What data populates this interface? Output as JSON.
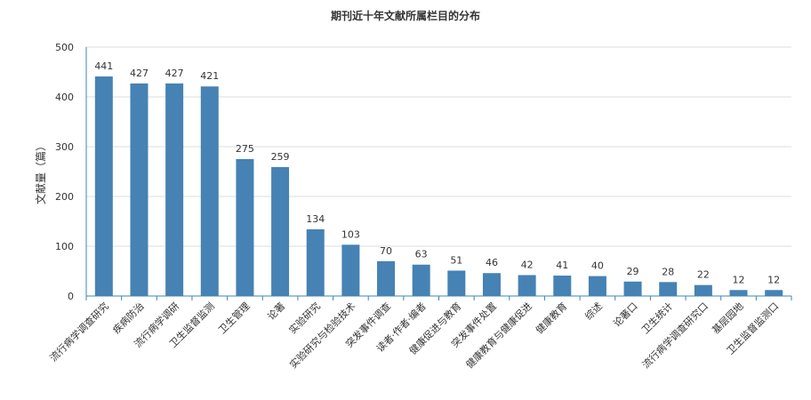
{
  "chart_data": {
    "type": "bar",
    "title": "期刊近十年文献所属栏目的分布",
    "xlabel": "",
    "ylabel": "文献量（篇）",
    "ylim": [
      0,
      500
    ],
    "yticks": [
      0,
      100,
      200,
      300,
      400,
      500
    ],
    "grid": true,
    "bar_color": "#4682b4",
    "axis_color": "#3b87b8",
    "categories": [
      "流行病学调查研究",
      "疾病防治",
      "流行病学调研",
      "卫生监督监测",
      "卫生管理",
      "论著",
      "实验研究",
      "实验研究与检验技术",
      "突发事件调查",
      "读者·作者·编者",
      "健康促进与教育",
      "突发事件处置",
      "健康教育与健康促进",
      "健康教育",
      "综述",
      "论著口",
      "卫生统计",
      "流行病学调查研究口",
      "基层园地",
      "卫生监督监测口"
    ],
    "values": [
      441,
      427,
      427,
      421,
      275,
      259,
      134,
      103,
      70,
      63,
      51,
      46,
      42,
      41,
      40,
      29,
      28,
      22,
      12,
      12
    ]
  }
}
